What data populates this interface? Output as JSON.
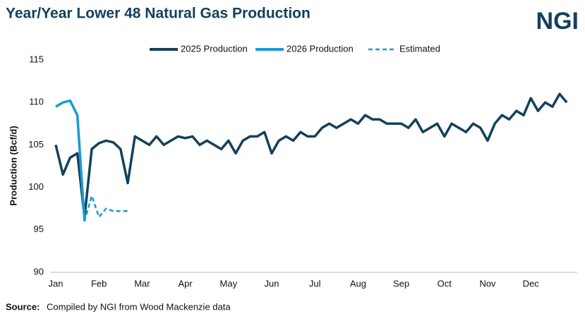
{
  "chart_data": {
    "type": "line",
    "title": "Year/Year Lower 48 Natural Gas Production",
    "logo": "NGI",
    "y_label": "Production (Bcf/d)",
    "source_label": "Source:",
    "source": "Compiled by NGI from Wood Mackenzie data",
    "categories": [
      "Jan",
      null,
      null,
      null,
      null,
      null,
      "Feb",
      null,
      null,
      null,
      null,
      null,
      "Mar",
      null,
      null,
      null,
      null,
      null,
      "Apr",
      null,
      null,
      null,
      null,
      null,
      "May",
      null,
      null,
      null,
      null,
      null,
      "Jun",
      null,
      null,
      null,
      null,
      null,
      "Jul",
      null,
      null,
      null,
      null,
      null,
      "Aug",
      null,
      null,
      null,
      null,
      null,
      "Sep",
      null,
      null,
      null,
      null,
      null,
      "Oct",
      null,
      null,
      null,
      null,
      null,
      "Nov",
      null,
      null,
      null,
      null,
      null,
      "Dec",
      null,
      null,
      null,
      null,
      null
    ],
    "ylim": [
      90,
      115
    ],
    "yticks": [
      90,
      95,
      100,
      105,
      110,
      115
    ],
    "grid": false,
    "legend": "top",
    "series": [
      {
        "name": "2025 Production",
        "color": "#15405a",
        "dashed": false,
        "values": [
          105,
          101.5,
          103.5,
          104,
          96.5,
          104.5,
          105.2,
          105.5,
          105.3,
          104.5,
          100.5,
          106,
          105.5,
          105,
          106,
          105,
          105.5,
          106,
          105.8,
          106,
          105,
          105.5,
          105,
          104.5,
          105.5,
          104,
          105.5,
          106,
          106,
          106.5,
          104,
          105.5,
          106,
          105.5,
          106.5,
          106,
          106,
          107,
          107.5,
          107,
          107.5,
          108,
          107.5,
          108.5,
          108,
          108,
          107.5,
          107.5,
          107.5,
          107,
          108,
          106.5,
          107,
          107.5,
          106,
          107.5,
          107,
          106.5,
          107.5,
          107,
          105.5,
          107.5,
          108.5,
          108,
          109,
          108.5,
          110.5,
          109,
          110,
          109.5,
          111,
          110
        ]
      },
      {
        "name": "2026 Production",
        "color": "#1b9ad6",
        "dashed": false,
        "values": [
          109.5,
          110,
          110.2,
          108.5,
          96,
          null,
          null,
          null,
          null,
          null,
          null,
          null,
          null,
          null,
          null,
          null,
          null,
          null,
          null,
          null,
          null,
          null,
          null,
          null,
          null,
          null,
          null,
          null,
          null,
          null,
          null,
          null,
          null,
          null,
          null,
          null,
          null,
          null,
          null,
          null,
          null,
          null,
          null,
          null,
          null,
          null,
          null,
          null,
          null,
          null,
          null,
          null,
          null,
          null,
          null,
          null,
          null,
          null,
          null,
          null,
          null,
          null,
          null,
          null,
          null,
          null,
          null,
          null,
          null,
          null,
          null,
          null
        ]
      },
      {
        "name": "Estimated",
        "color": "#1b9ad6",
        "dashed": true,
        "values": [
          null,
          null,
          null,
          null,
          96,
          99,
          96.5,
          97.5,
          97.2,
          97.2,
          97.2,
          null,
          null,
          null,
          null,
          null,
          null,
          null,
          null,
          null,
          null,
          null,
          null,
          null,
          null,
          null,
          null,
          null,
          null,
          null,
          null,
          null,
          null,
          null,
          null,
          null,
          null,
          null,
          null,
          null,
          null,
          null,
          null,
          null,
          null,
          null,
          null,
          null,
          null,
          null,
          null,
          null,
          null,
          null,
          null,
          null,
          null,
          null,
          null,
          null,
          null,
          null,
          null,
          null,
          null,
          null,
          null,
          null,
          null,
          null,
          null,
          null
        ]
      }
    ]
  }
}
